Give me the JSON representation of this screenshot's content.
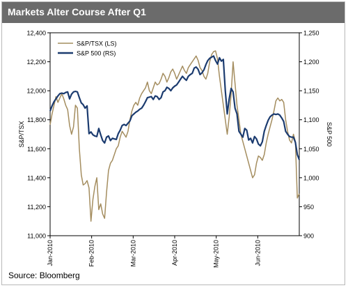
{
  "title": "Markets Alter Course After Q1",
  "source": "Source: Bloomberg",
  "colors": {
    "tsx": "#a48d5f",
    "sp500": "#1b3b6f",
    "title_bg": "#6b6b6b"
  },
  "chart_data": {
    "type": "line",
    "ylabel_left": "S&P/TSX",
    "ylabel_right": "S&P 500",
    "ylim_left": [
      11000,
      12400
    ],
    "ylim_right": [
      900,
      1250
    ],
    "yticks_left": [
      "11,000",
      "11,200",
      "11,400",
      "11,600",
      "11,800",
      "12,000",
      "12,200",
      "12,400"
    ],
    "yticks_right": [
      "900",
      "950",
      "1,000",
      "1,050",
      "1,100",
      "1,150",
      "1,200",
      "1,250"
    ],
    "xticks": [
      "Jan-2010",
      "Feb-2010",
      "Mar-2010",
      "Apr-2010",
      "May-2010",
      "Jun-2010"
    ],
    "x_days": [
      0,
      1,
      2,
      3,
      4,
      5,
      6,
      7,
      8,
      9,
      10,
      11,
      12,
      13,
      14,
      15,
      16,
      17,
      18,
      19,
      20,
      21,
      22,
      23,
      24,
      25,
      26,
      27,
      28,
      29,
      30,
      31,
      32,
      33,
      34,
      35,
      36,
      37,
      38,
      39,
      40,
      41,
      42,
      43,
      44,
      45,
      46,
      47,
      48,
      49,
      50,
      51,
      52,
      53,
      54,
      55,
      56,
      57,
      58,
      59,
      60,
      61,
      62,
      63,
      64,
      65,
      66,
      67,
      68,
      69,
      70,
      71,
      72,
      73,
      74,
      75,
      76,
      77,
      78,
      79,
      80,
      81,
      82,
      83,
      84,
      85,
      86,
      87,
      88,
      89,
      90,
      91,
      92,
      93,
      94,
      95,
      96,
      97,
      98,
      99,
      100,
      101,
      102,
      103,
      104,
      105,
      106,
      107,
      108,
      109,
      110,
      111,
      112,
      113,
      114,
      115,
      116,
      117,
      118,
      119,
      120,
      121,
      122,
      123,
      124,
      125,
      126,
      127,
      128
    ],
    "legend_position": "top-left",
    "series": [
      {
        "name": "S&P/TSX (LS)",
        "axis": "left",
        "color": "#a48d5f",
        "values": [
          11765,
          11840,
          11900,
          11960,
          11920,
          11950,
          11980,
          11945,
          11900,
          11870,
          11760,
          11700,
          11750,
          11900,
          11880,
          11600,
          11420,
          11350,
          11360,
          11380,
          11330,
          11100,
          11250,
          11340,
          11400,
          11180,
          11220,
          11150,
          11120,
          11300,
          11450,
          11500,
          11520,
          11560,
          11600,
          11620,
          11680,
          11720,
          11700,
          11680,
          11720,
          11800,
          11860,
          11900,
          11920,
          11900,
          11950,
          11980,
          12000,
          12020,
          12060,
          12000,
          11980,
          12020,
          12060,
          12040,
          12050,
          12080,
          12120,
          12100,
          12060,
          12090,
          12130,
          12150,
          12120,
          12080,
          12110,
          12140,
          12170,
          12140,
          12120,
          12160,
          12180,
          12200,
          12220,
          12240,
          12210,
          12160,
          12140,
          12100,
          12080,
          12120,
          12200,
          12250,
          12270,
          12275,
          12220,
          12100,
          12000,
          11900,
          11800,
          11700,
          11820,
          11980,
          12200,
          12050,
          11900,
          11800,
          11700,
          11650,
          11600,
          11550,
          11500,
          11450,
          11400,
          11420,
          11500,
          11550,
          11540,
          11520,
          11560,
          11640,
          11700,
          11750,
          11800,
          11860,
          11930,
          11950,
          11930,
          11940,
          11920,
          11800,
          11720,
          11660,
          11640,
          11700,
          11650,
          11260,
          11290
        ]
      },
      {
        "name": "S&P 500 (RS)",
        "axis": "right",
        "color": "#1b3b6f",
        "values": [
          1115,
          1124,
          1131,
          1136,
          1141,
          1145,
          1146,
          1145,
          1147,
          1148,
          1136,
          1144,
          1148,
          1149,
          1148,
          1138,
          1129,
          1126,
          1120,
          1124,
          1076,
          1079,
          1074,
          1072,
          1071,
          1085,
          1074,
          1064,
          1060,
          1070,
          1072,
          1064,
          1068,
          1067,
          1066,
          1076,
          1082,
          1090,
          1092,
          1090,
          1094,
          1098,
          1107,
          1110,
          1113,
          1115,
          1118,
          1120,
          1125,
          1131,
          1138,
          1139,
          1140,
          1135,
          1141,
          1140,
          1135,
          1138,
          1148,
          1150,
          1156,
          1154,
          1150,
          1155,
          1158,
          1160,
          1165,
          1170,
          1175,
          1171,
          1168,
          1175,
          1178,
          1180,
          1189,
          1191,
          1187,
          1178,
          1181,
          1186,
          1195,
          1202,
          1206,
          1208,
          1210,
          1202,
          1196,
          1207,
          1201,
          1204,
          1150,
          1110,
          1136,
          1154,
          1148,
          1120,
          1110,
          1080,
          1075,
          1070,
          1085,
          1082,
          1065,
          1068,
          1060,
          1071,
          1067,
          1058,
          1055,
          1062,
          1080,
          1090,
          1099,
          1105,
          1108,
          1110,
          1109,
          1110,
          1108,
          1103,
          1097,
          1080,
          1075,
          1071,
          1070,
          1070,
          1061,
          1040,
          1031
        ]
      }
    ]
  }
}
